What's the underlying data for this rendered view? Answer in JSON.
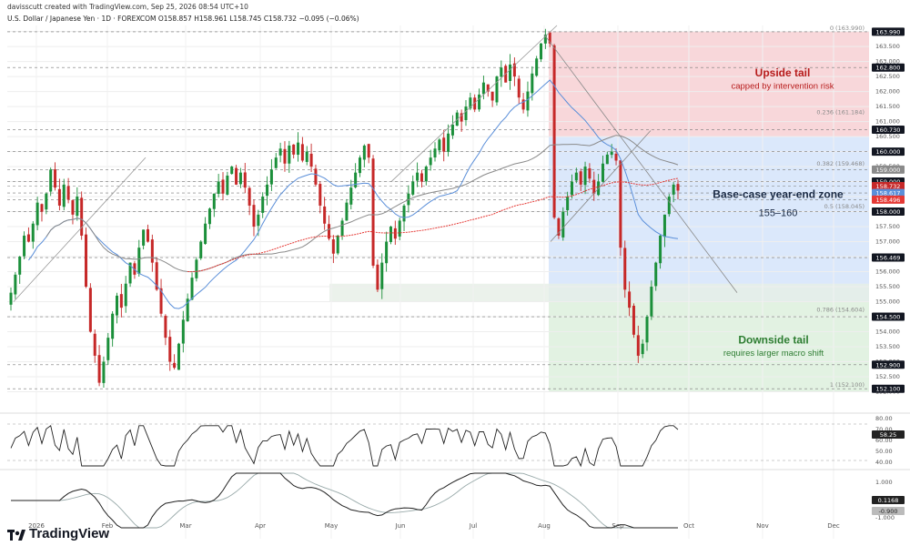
{
  "header": {
    "created": "davisscutt created with TradingView.com, Sep 25, 2026 08:54 UTC+10",
    "symbol": "U.S. Dollar / Japanese Yen · 1D · FOREXCOM  O158.857  H158.961  L158.745  C158.732  −0.095 (−0.06%)"
  },
  "brand": {
    "name": "TradingView"
  },
  "colors": {
    "bull": "#1b8f3a",
    "bear": "#c62828",
    "ma_blue": "#5b8fd9",
    "ma_grey": "#8a8a8a",
    "ma_red": "#e53935",
    "upside_zone": "#f8d7da",
    "base_zone": "#dbe8fb",
    "down_zone": "#e2f2e2"
  },
  "annotations": {
    "upside_title": "Upside tail",
    "upside_sub": "capped by intervention risk",
    "base_title": "Base-case year-end zone",
    "base_sub": "155–160",
    "down_title": "Downside tail",
    "down_sub": "requires larger macro shift"
  },
  "chart_data": {
    "type": "candlestick",
    "x_months": [
      "2026",
      "Feb",
      "Mar",
      "Apr",
      "May",
      "Jun",
      "Jul",
      "Aug",
      "Sep",
      "Oct",
      "Nov",
      "Dec"
    ],
    "ylim": [
      151.5,
      164.2
    ],
    "y_ticks": [
      "164.000",
      "163.500",
      "163.000",
      "162.500",
      "162.000",
      "161.500",
      "161.000",
      "160.500",
      "160.000",
      "159.500",
      "159.000",
      "158.500",
      "158.000",
      "157.500",
      "157.000",
      "156.500",
      "156.000",
      "155.500",
      "155.000",
      "154.500",
      "154.000",
      "153.500",
      "153.000",
      "152.500",
      "152.000"
    ],
    "price_labels": [
      {
        "label": "163.990",
        "value": 163.99,
        "color": "#131722"
      },
      {
        "label": "162.800",
        "value": 162.8,
        "color": "#131722"
      },
      {
        "label": "160.730",
        "value": 160.73,
        "color": "#131722"
      },
      {
        "label": "160.000",
        "value": 160.0,
        "color": "#131722"
      },
      {
        "label": "159.000",
        "value": 159.4,
        "color": "#8a8a8a"
      },
      {
        "label": "159.000",
        "value": 159.0,
        "color": "#131722"
      },
      {
        "label": "158.732",
        "value": 158.85,
        "color": "#c62828"
      },
      {
        "label": "158.617",
        "value": 158.62,
        "color": "#5b8fd9"
      },
      {
        "label": "158.496",
        "value": 158.4,
        "color": "#e53935"
      },
      {
        "label": "158.000",
        "value": 158.0,
        "color": "#131722"
      },
      {
        "label": "156.469",
        "value": 156.469,
        "color": "#131722"
      },
      {
        "label": "154.500",
        "value": 154.5,
        "color": "#131722"
      },
      {
        "label": "152.900",
        "value": 152.9,
        "color": "#131722"
      },
      {
        "label": "152.100",
        "value": 152.1,
        "color": "#131722"
      }
    ],
    "fib_levels": [
      {
        "label": "0 (163.990)",
        "value": 163.99
      },
      {
        "label": "0.236 (161.184)",
        "value": 161.184
      },
      {
        "label": "0.382 (159.468)",
        "value": 159.468
      },
      {
        "label": "0.5 (158.045)",
        "value": 158.045
      },
      {
        "label": "0.786 (154.604)",
        "value": 154.604
      },
      {
        "label": "1 (152.100)",
        "value": 152.1
      }
    ],
    "zones": [
      {
        "name": "upside",
        "from": 160.5,
        "to": 164.0
      },
      {
        "name": "base",
        "from": 155.0,
        "to": 160.5
      },
      {
        "name": "downside",
        "from": 152.0,
        "to": 155.0
      }
    ],
    "ohlc_closes": [
      155.3,
      155.9,
      156.5,
      157.2,
      157.0,
      157.6,
      158.3,
      158.0,
      158.6,
      159.4,
      158.8,
      158.2,
      158.9,
      158.4,
      157.9,
      158.5,
      157.2,
      155.5,
      154.0,
      153.2,
      152.3,
      153.0,
      153.8,
      154.6,
      155.2,
      154.8,
      155.6,
      156.3,
      155.9,
      156.8,
      157.4,
      157.0,
      156.3,
      155.4,
      154.6,
      153.8,
      153.0,
      152.8,
      153.6,
      154.4,
      155.1,
      155.8,
      156.4,
      157.0,
      157.6,
      158.1,
      158.6,
      159.0,
      158.6,
      159.2,
      159.5,
      158.9,
      159.3,
      158.8,
      158.2,
      157.5,
      157.9,
      158.5,
      158.9,
      159.4,
      159.8,
      160.1,
      159.6,
      160.2,
      159.9,
      160.3,
      159.7,
      160.0,
      159.5,
      158.9,
      158.2,
      157.6,
      157.1,
      156.6,
      157.2,
      157.7,
      158.3,
      158.8,
      159.3,
      159.8,
      160.2,
      159.8,
      156.2,
      155.4,
      156.3,
      157.0,
      157.5,
      157.1,
      157.7,
      158.2,
      158.6,
      159.0,
      159.3,
      159.0,
      159.5,
      159.8,
      160.1,
      160.4,
      160.0,
      160.6,
      160.9,
      161.3,
      161.0,
      161.5,
      161.8,
      161.4,
      161.9,
      162.3,
      162.0,
      161.7,
      162.5,
      162.8,
      162.3,
      162.9,
      162.5,
      161.8,
      161.4,
      162.0,
      162.6,
      163.1,
      163.6,
      163.9,
      163.6,
      157.8,
      157.2,
      158.0,
      158.5,
      159.0,
      159.3,
      158.9,
      159.5,
      159.1,
      158.6,
      159.0,
      159.6,
      159.9,
      160.0,
      159.7,
      156.8,
      155.4,
      154.8,
      153.9,
      153.2,
      153.6,
      154.5,
      155.5,
      156.3,
      157.2,
      157.9,
      158.5,
      158.9,
      158.7
    ],
    "rsi": {
      "label": "RSI",
      "current": "58.25",
      "ticks": [
        "80.00",
        "70.00",
        "60.00",
        "50.00",
        "40.00"
      ]
    },
    "macd": {
      "label": "MACD",
      "current": "0.1168",
      "signal": "-0.900",
      "ticks": [
        "1.000",
        "0.000",
        "-1.000"
      ]
    }
  }
}
